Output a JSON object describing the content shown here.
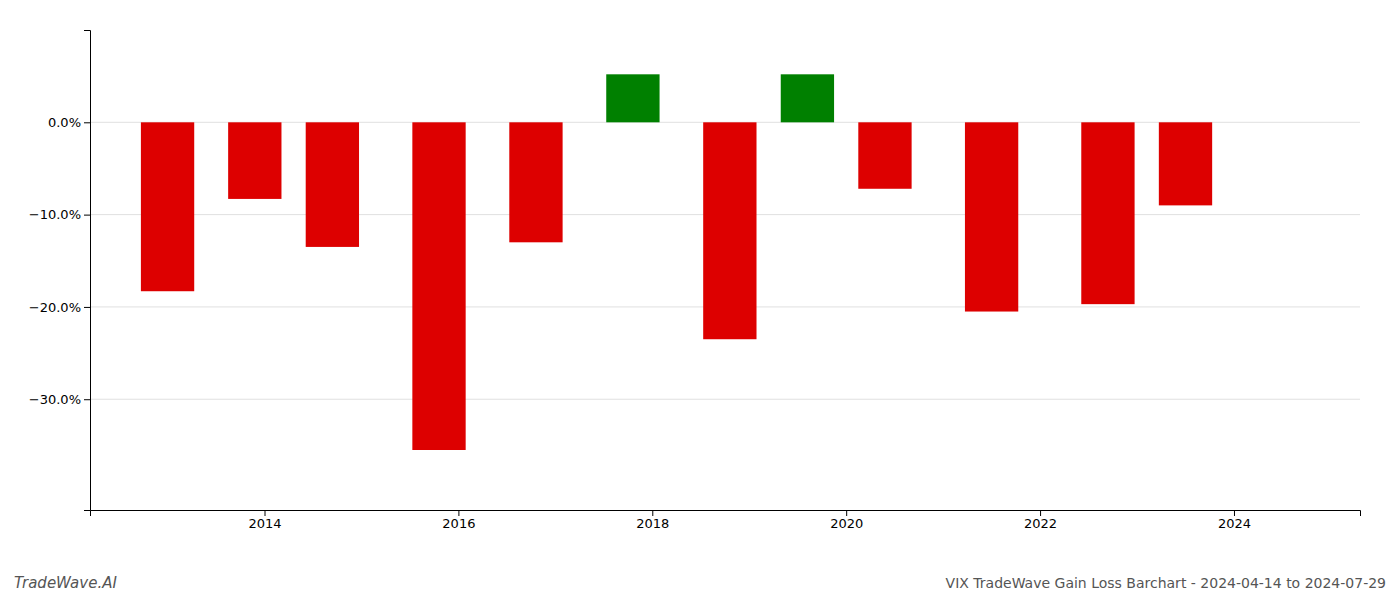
{
  "chart_data": {
    "type": "bar",
    "title": "VIX TradeWave Gain Loss Barchart - 2024-04-14 to 2024-07-29",
    "annotations": [
      "TradeWave.AI"
    ],
    "x": [
      2013,
      2013.9,
      2014.7,
      2015.8,
      2016.8,
      2017.8,
      2018.8,
      2019.6,
      2020.4,
      2021.5,
      2022.7,
      2023.5
    ],
    "values": [
      -0.183,
      -0.083,
      -0.135,
      -0.355,
      -0.13,
      0.052,
      -0.235,
      0.052,
      -0.072,
      -0.205,
      -0.197,
      -0.09
    ],
    "colors": [
      "#dd0000",
      "#dd0000",
      "#dd0000",
      "#dd0000",
      "#dd0000",
      "#008000",
      "#dd0000",
      "#008000",
      "#dd0000",
      "#dd0000",
      "#dd0000",
      "#dd0000"
    ],
    "xlim": [
      2012.2,
      2025.3
    ],
    "xticks": [
      2014,
      2016,
      2018,
      2020,
      2022,
      2024
    ],
    "ylim": [
      -0.42,
      0.1
    ],
    "yticks": [
      {
        "value": 0.0,
        "label": "0.0%"
      },
      {
        "value": -0.1,
        "label": "−10.0%"
      },
      {
        "value": -0.2,
        "label": "−20.0%"
      },
      {
        "value": -0.3,
        "label": "−30.0%"
      }
    ],
    "grid": true
  }
}
